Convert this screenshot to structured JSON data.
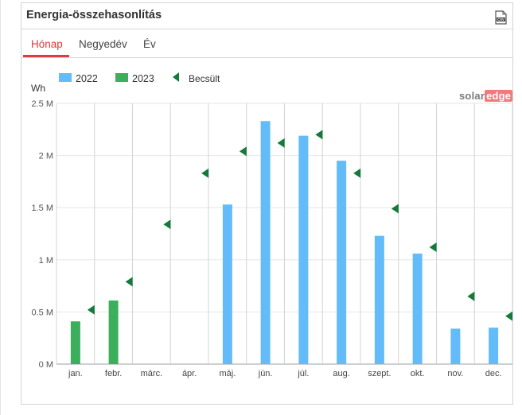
{
  "header": {
    "title": "Energia-összehasonlítás",
    "export_icon": "csv-export-icon",
    "export_label": "CSV"
  },
  "tabs": [
    {
      "label": "Hónap",
      "active": true
    },
    {
      "label": "Negyedév",
      "active": false
    },
    {
      "label": "Év",
      "active": false
    }
  ],
  "brand": {
    "part1": "solar",
    "part2": "edge"
  },
  "colors": {
    "series_2022": "#63bcf9",
    "series_2023": "#3caf5c",
    "estimate": "#137a3a",
    "tab_active": "#e23b3b"
  },
  "chart_data": {
    "type": "bar",
    "ylabel": "Wh",
    "yticks": [
      "0 M",
      "0.5 M",
      "1 M",
      "1.5 M",
      "2 M",
      "2.5 M"
    ],
    "ylim": [
      0,
      2500000
    ],
    "grid": true,
    "legend_position": "top-left",
    "categories": [
      "jan.",
      "febr.",
      "márc.",
      "ápr.",
      "máj.",
      "jún.",
      "júl.",
      "aug.",
      "szept.",
      "okt.",
      "nov.",
      "dec."
    ],
    "series": [
      {
        "name": "2022",
        "type": "bar",
        "values": [
          null,
          null,
          null,
          null,
          1530000,
          2330000,
          2190000,
          1950000,
          1230000,
          1060000,
          340000,
          350000
        ]
      },
      {
        "name": "2023",
        "type": "bar",
        "values": [
          410000,
          610000,
          null,
          null,
          null,
          null,
          null,
          null,
          null,
          null,
          null,
          null
        ]
      },
      {
        "name": "Becsült",
        "type": "marker",
        "values": [
          520000,
          790000,
          1340000,
          1830000,
          2040000,
          2120000,
          2200000,
          1830000,
          1490000,
          1120000,
          650000,
          460000
        ]
      }
    ]
  }
}
